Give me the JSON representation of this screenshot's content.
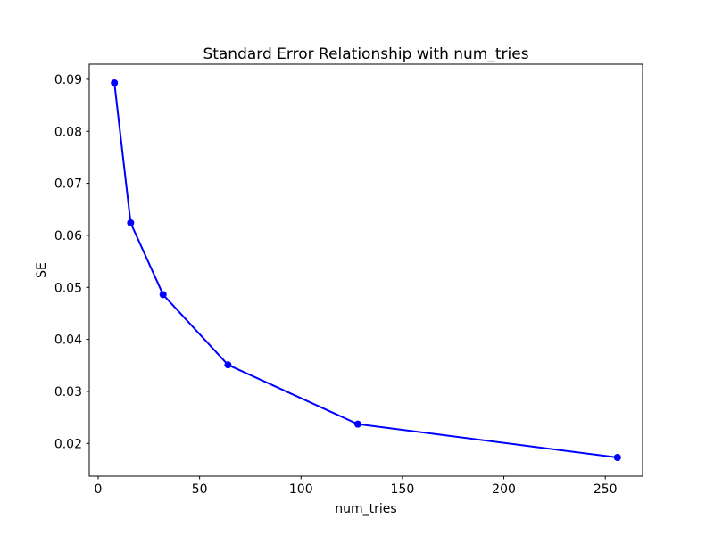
{
  "chart_data": {
    "type": "line",
    "title": "Standard Error Relationship with num_tries",
    "xlabel": "num_tries",
    "ylabel": "SE",
    "x": [
      8,
      16,
      32,
      64,
      128,
      256
    ],
    "series": [
      {
        "name": "SE",
        "values": [
          0.0893,
          0.0624,
          0.0486,
          0.0351,
          0.0237,
          0.0173
        ],
        "color": "#0000ff",
        "marker": "circle",
        "line_width": 2,
        "marker_radius": 4
      }
    ],
    "xlim": [
      -4.4,
      268.4
    ],
    "ylim": [
      0.0137,
      0.0929
    ],
    "xticks": {
      "values": [
        0,
        50,
        100,
        150,
        200,
        250
      ],
      "labels": [
        "0",
        "50",
        "100",
        "150",
        "200",
        "250"
      ]
    },
    "yticks": {
      "values": [
        0.02,
        0.03,
        0.04,
        0.05,
        0.06,
        0.07,
        0.08,
        0.09
      ],
      "labels": [
        "0.02",
        "0.03",
        "0.04",
        "0.05",
        "0.06",
        "0.07",
        "0.08",
        "0.09"
      ]
    },
    "grid": false,
    "legend_position": "none",
    "frame_color": "#000000",
    "background_color": "#ffffff"
  }
}
